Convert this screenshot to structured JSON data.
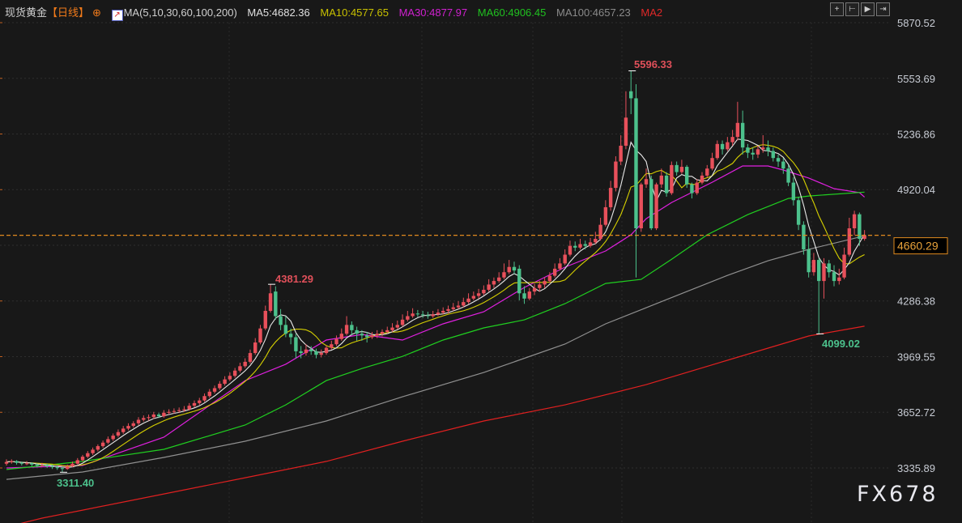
{
  "header": {
    "title": "现货黄金",
    "period": "【日线】",
    "indicator_name": "MA(5,10,30,60,100,200)",
    "ma5": "MA5:4682.36",
    "ma10": "MA10:4577.65",
    "ma30": "MA30:4877.97",
    "ma60": "MA60:4906.45",
    "ma100": "MA100:4657.23",
    "ma200": "MA2"
  },
  "toolbar": {
    "icons": [
      "crosshair-icon",
      "range-start-icon",
      "play-icon",
      "exit-icon"
    ],
    "glyphs": [
      "+",
      "⊢",
      "▶",
      "⇥"
    ]
  },
  "watermark": "FX678",
  "colors": {
    "up": "#e8505b",
    "down": "#4cc18c",
    "ma5": "#e8e8e8",
    "ma10": "#d6d000",
    "ma30": "#e020e0",
    "ma60": "#20d020",
    "ma100": "#909090",
    "ma200": "#e02020",
    "last": "#e08a1e",
    "background": "#181818"
  },
  "chart_data": {
    "type": "candlestick",
    "title": "现货黄金",
    "ylim": [
      3335.89,
      5870.52
    ],
    "y_ticks": [
      "5870.52",
      "5553.69",
      "5236.86",
      "4920.04",
      "4286.38",
      "3969.55",
      "3652.72",
      "3335.89"
    ],
    "last_price": "4660.29",
    "annotations": {
      "high1": "4381.29",
      "high2": "5596.33",
      "low1": "3311.40",
      "low2": "4099.02"
    },
    "candles": [
      [
        3360,
        3385,
        3350,
        3370
      ],
      [
        3370,
        3385,
        3360,
        3375
      ],
      [
        3375,
        3380,
        3355,
        3365
      ],
      [
        3365,
        3372,
        3350,
        3360
      ],
      [
        3360,
        3375,
        3352,
        3362
      ],
      [
        3362,
        3368,
        3345,
        3355
      ],
      [
        3355,
        3362,
        3340,
        3350
      ],
      [
        3350,
        3365,
        3342,
        3352
      ],
      [
        3352,
        3360,
        3335,
        3345
      ],
      [
        3345,
        3355,
        3330,
        3340
      ],
      [
        3340,
        3350,
        3325,
        3335
      ],
      [
        3335,
        3345,
        3311.4,
        3330
      ],
      [
        3330,
        3355,
        3325,
        3345
      ],
      [
        3345,
        3372,
        3340,
        3360
      ],
      [
        3360,
        3392,
        3355,
        3380
      ],
      [
        3380,
        3410,
        3372,
        3400
      ],
      [
        3400,
        3432,
        3392,
        3420
      ],
      [
        3420,
        3452,
        3410,
        3440
      ],
      [
        3440,
        3470,
        3430,
        3460
      ],
      [
        3460,
        3492,
        3450,
        3480
      ],
      [
        3480,
        3515,
        3472,
        3500
      ],
      [
        3500,
        3532,
        3490,
        3520
      ],
      [
        3520,
        3555,
        3510,
        3540
      ],
      [
        3540,
        3575,
        3530,
        3560
      ],
      [
        3560,
        3590,
        3550,
        3575
      ],
      [
        3575,
        3602,
        3565,
        3590
      ],
      [
        3590,
        3625,
        3580,
        3610
      ],
      [
        3610,
        3635,
        3600,
        3620
      ],
      [
        3620,
        3640,
        3605,
        3625
      ],
      [
        3625,
        3655,
        3615,
        3640
      ],
      [
        3640,
        3650,
        3620,
        3630
      ],
      [
        3630,
        3665,
        3622,
        3650
      ],
      [
        3650,
        3670,
        3640,
        3655
      ],
      [
        3655,
        3675,
        3645,
        3660
      ],
      [
        3660,
        3680,
        3650,
        3665
      ],
      [
        3665,
        3688,
        3655,
        3670
      ],
      [
        3670,
        3705,
        3662,
        3690
      ],
      [
        3690,
        3720,
        3680,
        3705
      ],
      [
        3705,
        3735,
        3695,
        3720
      ],
      [
        3720,
        3760,
        3712,
        3745
      ],
      [
        3745,
        3785,
        3735,
        3770
      ],
      [
        3770,
        3805,
        3760,
        3790
      ],
      [
        3790,
        3830,
        3780,
        3815
      ],
      [
        3815,
        3858,
        3805,
        3840
      ],
      [
        3840,
        3880,
        3830,
        3860
      ],
      [
        3860,
        3905,
        3850,
        3890
      ],
      [
        3890,
        3935,
        3880,
        3915
      ],
      [
        3915,
        3960,
        3905,
        3940
      ],
      [
        3940,
        4010,
        3930,
        3990
      ],
      [
        3990,
        4075,
        3980,
        4050
      ],
      [
        4050,
        4150,
        4040,
        4130
      ],
      [
        4130,
        4260,
        4120,
        4230
      ],
      [
        4230,
        4381.29,
        4220,
        4330
      ],
      [
        4340,
        4370,
        4180,
        4200
      ],
      [
        4200,
        4240,
        4120,
        4150
      ],
      [
        4150,
        4200,
        4080,
        4100
      ],
      [
        4100,
        4130,
        4040,
        4080
      ],
      [
        4080,
        4100,
        3960,
        4000
      ],
      [
        4000,
        4030,
        3960,
        3990
      ],
      [
        3990,
        4040,
        3975,
        4010
      ],
      [
        4010,
        4030,
        3980,
        4000
      ],
      [
        4000,
        4015,
        3960,
        3980
      ],
      [
        3980,
        4010,
        3965,
        3990
      ],
      [
        3990,
        4035,
        3980,
        4020
      ],
      [
        4020,
        4060,
        4010,
        4040
      ],
      [
        4040,
        4090,
        4030,
        4070
      ],
      [
        4070,
        4130,
        4060,
        4100
      ],
      [
        4100,
        4200,
        4090,
        4150
      ],
      [
        4150,
        4170,
        4090,
        4120
      ],
      [
        4120,
        4140,
        4060,
        4100
      ],
      [
        4100,
        4120,
        4060,
        4090
      ],
      [
        4090,
        4110,
        4050,
        4080
      ],
      [
        4080,
        4110,
        4070,
        4090
      ],
      [
        4090,
        4120,
        4075,
        4100
      ],
      [
        4100,
        4125,
        4085,
        4110
      ],
      [
        4110,
        4140,
        4100,
        4120
      ],
      [
        4120,
        4160,
        4110,
        4135
      ],
      [
        4135,
        4175,
        4125,
        4150
      ],
      [
        4150,
        4210,
        4140,
        4180
      ],
      [
        4180,
        4230,
        4170,
        4200
      ],
      [
        4200,
        4245,
        4190,
        4215
      ],
      [
        4215,
        4235,
        4195,
        4210
      ],
      [
        4210,
        4230,
        4190,
        4205
      ],
      [
        4205,
        4225,
        4185,
        4200
      ],
      [
        4200,
        4230,
        4190,
        4210
      ],
      [
        4210,
        4240,
        4200,
        4220
      ],
      [
        4220,
        4250,
        4210,
        4230
      ],
      [
        4230,
        4260,
        4215,
        4240
      ],
      [
        4240,
        4275,
        4230,
        4250
      ],
      [
        4250,
        4285,
        4240,
        4260
      ],
      [
        4260,
        4305,
        4250,
        4280
      ],
      [
        4280,
        4330,
        4270,
        4300
      ],
      [
        4300,
        4340,
        4290,
        4315
      ],
      [
        4315,
        4355,
        4300,
        4330
      ],
      [
        4330,
        4375,
        4320,
        4350
      ],
      [
        4350,
        4410,
        4340,
        4380
      ],
      [
        4380,
        4420,
        4360,
        4400
      ],
      [
        4400,
        4450,
        4390,
        4420
      ],
      [
        4420,
        4500,
        4410,
        4450
      ],
      [
        4450,
        4520,
        4440,
        4480
      ],
      [
        4480,
        4510,
        4440,
        4460
      ],
      [
        4470,
        4490,
        4290,
        4330
      ],
      [
        4330,
        4370,
        4270,
        4300
      ],
      [
        4300,
        4360,
        4290,
        4340
      ],
      [
        4340,
        4385,
        4320,
        4360
      ],
      [
        4360,
        4400,
        4340,
        4380
      ],
      [
        4380,
        4420,
        4360,
        4400
      ],
      [
        4400,
        4450,
        4390,
        4430
      ],
      [
        4430,
        4500,
        4420,
        4470
      ],
      [
        4470,
        4530,
        4460,
        4500
      ],
      [
        4500,
        4580,
        4490,
        4550
      ],
      [
        4550,
        4630,
        4540,
        4600
      ],
      [
        4600,
        4625,
        4570,
        4590
      ],
      [
        4590,
        4640,
        4580,
        4610
      ],
      [
        4610,
        4630,
        4580,
        4600
      ],
      [
        4600,
        4645,
        4590,
        4620
      ],
      [
        4620,
        4680,
        4610,
        4640
      ],
      [
        4640,
        4760,
        4630,
        4720
      ],
      [
        4720,
        4860,
        4710,
        4820
      ],
      [
        4820,
        4970,
        4800,
        4930
      ],
      [
        4930,
        5110,
        4910,
        5080
      ],
      [
        5080,
        5230,
        5060,
        5170
      ],
      [
        5170,
        5480,
        5150,
        5330
      ],
      [
        5480,
        5596.33,
        5350,
        5440
      ],
      [
        5440,
        5520,
        4420,
        4700
      ],
      [
        4700,
        4960,
        4680,
        4950
      ],
      [
        4950,
        5040,
        4930,
        4980
      ],
      [
        4980,
        5000,
        4690,
        4700
      ],
      [
        4700,
        4960,
        4690,
        4950
      ],
      [
        4950,
        5040,
        4930,
        5000
      ],
      [
        5000,
        5020,
        4880,
        4900
      ],
      [
        4900,
        5080,
        4890,
        5060
      ],
      [
        5060,
        5080,
        5000,
        5020
      ],
      [
        5020,
        5090,
        5010,
        5050
      ],
      [
        5050,
        5060,
        4930,
        4950
      ],
      [
        4950,
        4960,
        4870,
        4900
      ],
      [
        4900,
        4980,
        4890,
        4960
      ],
      [
        4960,
        5020,
        4950,
        5000
      ],
      [
        5000,
        5060,
        4990,
        5040
      ],
      [
        5040,
        5130,
        5030,
        5100
      ],
      [
        5100,
        5200,
        5090,
        5180
      ],
      [
        5180,
        5200,
        5120,
        5150
      ],
      [
        5150,
        5220,
        5140,
        5190
      ],
      [
        5190,
        5260,
        5170,
        5220
      ],
      [
        5220,
        5420,
        5200,
        5300
      ],
      [
        5300,
        5370,
        5120,
        5160
      ],
      [
        5160,
        5180,
        5100,
        5130
      ],
      [
        5130,
        5160,
        5090,
        5120
      ],
      [
        5120,
        5170,
        5100,
        5150
      ],
      [
        5150,
        5230,
        5130,
        5160
      ],
      [
        5160,
        5200,
        5110,
        5140
      ],
      [
        5140,
        5160,
        5080,
        5100
      ],
      [
        5100,
        5120,
        5050,
        5080
      ],
      [
        5080,
        5100,
        5010,
        5040
      ],
      [
        5040,
        5060,
        4940,
        4960
      ],
      [
        4960,
        4990,
        4830,
        4860
      ],
      [
        4860,
        4880,
        4690,
        4720
      ],
      [
        4720,
        4740,
        4550,
        4580
      ],
      [
        4580,
        4650,
        4420,
        4450
      ],
      [
        4450,
        4560,
        4430,
        4520
      ],
      [
        4520,
        4530,
        4099.02,
        4400
      ],
      [
        4400,
        4530,
        4300,
        4500
      ],
      [
        4500,
        4520,
        4420,
        4450
      ],
      [
        4450,
        4490,
        4370,
        4400
      ],
      [
        4400,
        4470,
        4380,
        4420
      ],
      [
        4420,
        4590,
        4410,
        4550
      ],
      [
        4550,
        4760,
        4540,
        4700
      ],
      [
        4700,
        4800,
        4660,
        4780
      ],
      [
        4780,
        4790,
        4600,
        4640
      ],
      [
        4640,
        4690,
        4630,
        4660.29
      ]
    ],
    "ma_series": {
      "ma30": [
        [
          0,
          3336
        ],
        [
          15,
          3350
        ],
        [
          31,
          3511
        ],
        [
          47,
          3833
        ],
        [
          55,
          3926
        ],
        [
          63,
          4064
        ],
        [
          70,
          4096
        ],
        [
          78,
          4064
        ],
        [
          86,
          4156
        ],
        [
          94,
          4225
        ],
        [
          102,
          4363
        ],
        [
          110,
          4479
        ],
        [
          118,
          4571
        ],
        [
          123,
          4663
        ],
        [
          126,
          4755
        ],
        [
          131,
          4847
        ],
        [
          139,
          4962
        ],
        [
          145,
          5055
        ],
        [
          150,
          5055
        ],
        [
          153,
          5032
        ],
        [
          158,
          4986
        ],
        [
          163,
          4926
        ],
        [
          168,
          4903
        ],
        [
          169,
          4878
        ]
      ],
      "ma60": [
        [
          0,
          3327
        ],
        [
          15,
          3373
        ],
        [
          31,
          3442
        ],
        [
          47,
          3580
        ],
        [
          55,
          3695
        ],
        [
          63,
          3833
        ],
        [
          70,
          3902
        ],
        [
          78,
          3971
        ],
        [
          86,
          4064
        ],
        [
          94,
          4133
        ],
        [
          102,
          4179
        ],
        [
          110,
          4271
        ],
        [
          118,
          4386
        ],
        [
          125,
          4409
        ],
        [
          131,
          4524
        ],
        [
          138,
          4663
        ],
        [
          146,
          4778
        ],
        [
          154,
          4870
        ],
        [
          158,
          4884
        ],
        [
          169,
          4906
        ]
      ],
      "ma100": [
        [
          0,
          3271
        ],
        [
          15,
          3313
        ],
        [
          31,
          3396
        ],
        [
          47,
          3488
        ],
        [
          63,
          3603
        ],
        [
          78,
          3741
        ],
        [
          94,
          3879
        ],
        [
          110,
          4041
        ],
        [
          118,
          4156
        ],
        [
          126,
          4248
        ],
        [
          134,
          4340
        ],
        [
          142,
          4432
        ],
        [
          150,
          4515
        ],
        [
          158,
          4580
        ],
        [
          169,
          4657
        ]
      ],
      "ma200": [
        [
          0,
          3000
        ],
        [
          7,
          3050
        ],
        [
          15,
          3096
        ],
        [
          31,
          3188
        ],
        [
          47,
          3280
        ],
        [
          63,
          3373
        ],
        [
          78,
          3488
        ],
        [
          94,
          3603
        ],
        [
          110,
          3695
        ],
        [
          126,
          3810
        ],
        [
          142,
          3949
        ],
        [
          158,
          4087
        ],
        [
          169,
          4143
        ]
      ]
    }
  }
}
